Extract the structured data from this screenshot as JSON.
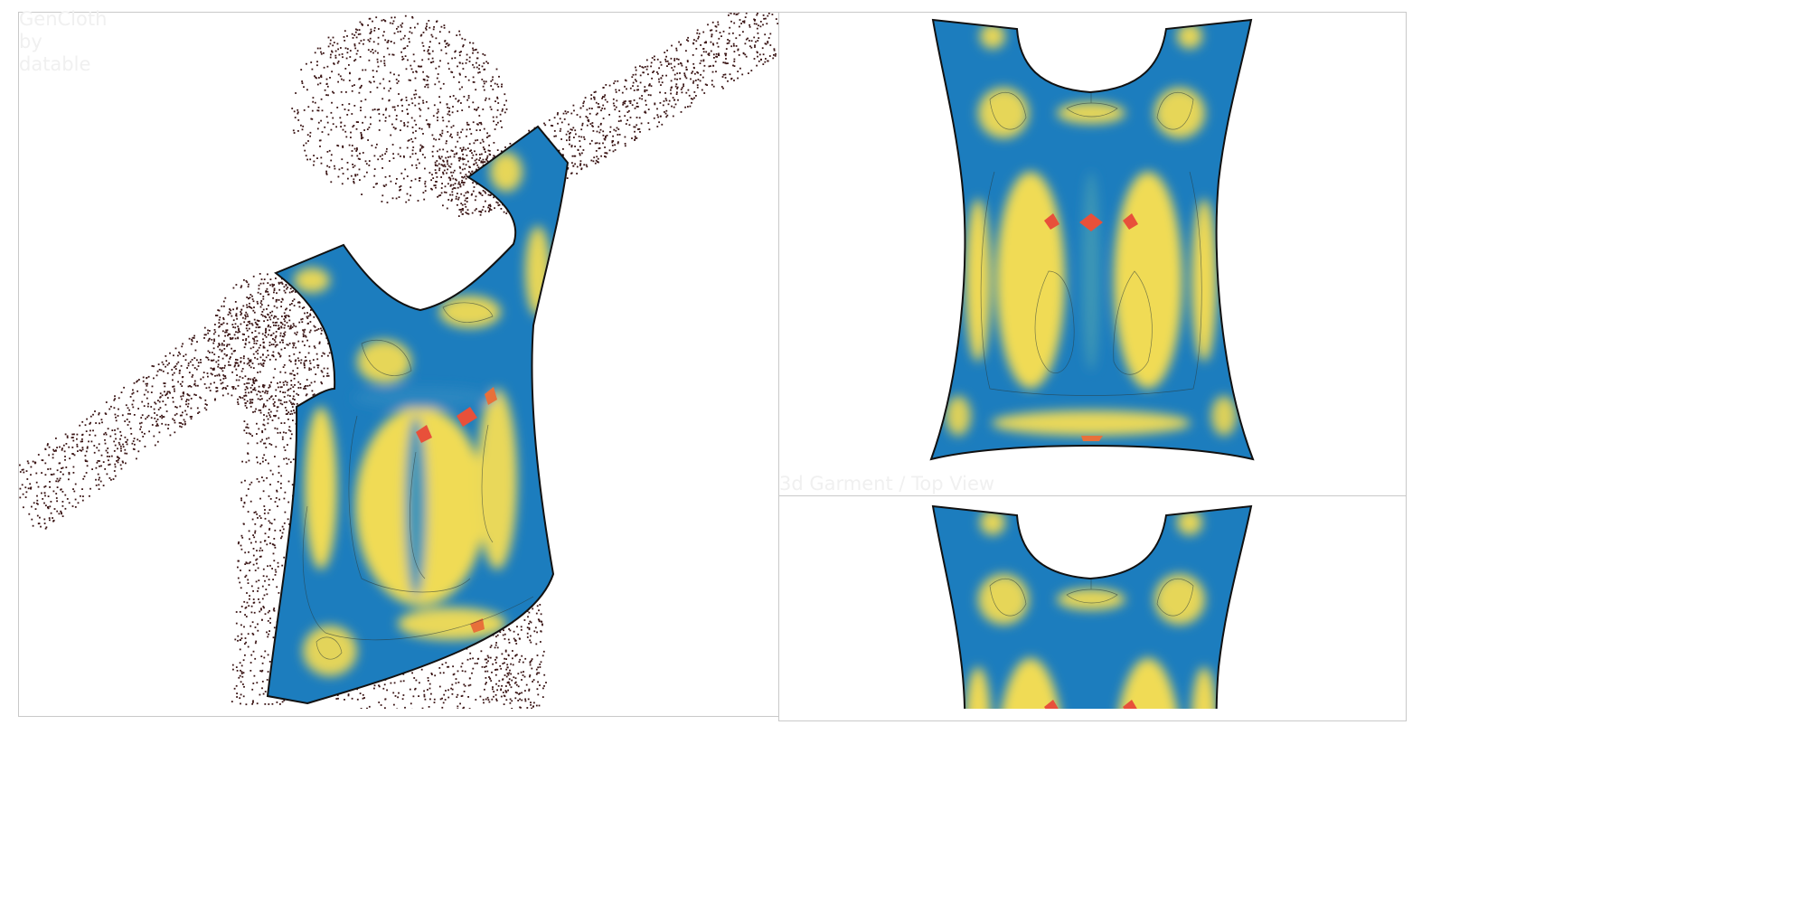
{
  "watermark": {
    "brand_line1": "GenCloth",
    "brand_line2": "by",
    "brand_line3": "datable"
  },
  "view_label": "3d Garment / Top View",
  "colors": {
    "background": "#ffffff",
    "frame_border": "#c9c9c9",
    "point_cloud": "#3a1414",
    "garment_outline": "#111111",
    "heat_low": "#1f7fbf",
    "heat_mid": "#6fb3a0",
    "heat_high": "#f2dc57",
    "heat_peak": "#e8503a"
  },
  "icons": {
    "point_cloud": "human-body-point-cloud",
    "garment": "sleeveless-top-heatmap"
  }
}
